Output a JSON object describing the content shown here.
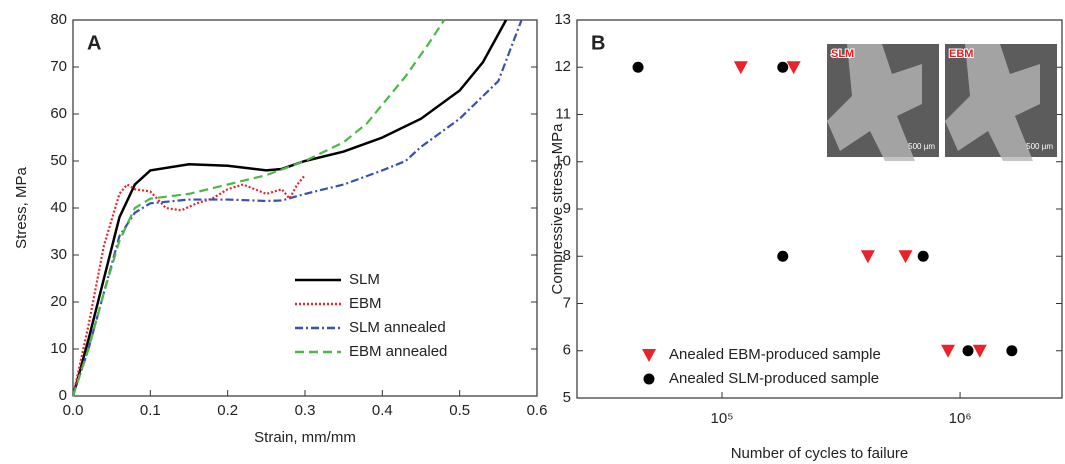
{
  "chart_data": [
    {
      "type": "line",
      "panel": "A",
      "xlabel": "Strain, mm/mm",
      "ylabel": "Stress, MPa",
      "xlim": [
        0,
        0.6
      ],
      "ylim": [
        0,
        80
      ],
      "xticks": [
        {
          "value": 0,
          "label": "0.0"
        },
        0.1,
        0.2,
        0.3,
        0.4,
        0.5,
        0.6
      ],
      "yticks": [
        0,
        10,
        20,
        30,
        40,
        50,
        60,
        70,
        80
      ],
      "legend": "lower right",
      "series": [
        {
          "name": "SLM",
          "color": "#000000",
          "style": "solid",
          "x": [
            0,
            0.02,
            0.04,
            0.06,
            0.08,
            0.1,
            0.15,
            0.2,
            0.25,
            0.27,
            0.3,
            0.35,
            0.4,
            0.45,
            0.5,
            0.53,
            0.55,
            0.56
          ],
          "values": [
            0,
            12,
            25,
            38,
            45,
            48,
            49.3,
            49,
            48,
            48.3,
            50,
            52,
            55,
            59,
            65,
            71,
            77,
            80
          ]
        },
        {
          "name": "EBM",
          "color": "#e8242a",
          "style": "dotted",
          "x": [
            0,
            0.02,
            0.04,
            0.06,
            0.07,
            0.08,
            0.1,
            0.12,
            0.14,
            0.16,
            0.18,
            0.2,
            0.22,
            0.25,
            0.27,
            0.28,
            0.29,
            0.3
          ],
          "values": [
            0,
            15,
            32,
            43,
            45,
            44,
            43.5,
            40,
            39.5,
            41,
            42,
            44,
            45,
            43,
            44,
            42,
            45,
            47
          ]
        },
        {
          "name": "SLM annealed",
          "color": "#3a4fb0",
          "style": "dashdot",
          "x": [
            0,
            0.02,
            0.04,
            0.06,
            0.08,
            0.1,
            0.15,
            0.2,
            0.25,
            0.27,
            0.3,
            0.35,
            0.4,
            0.43,
            0.45,
            0.5,
            0.55,
            0.58
          ],
          "values": [
            0,
            10,
            22,
            34,
            39,
            41,
            41.8,
            41.8,
            41.5,
            41.6,
            43,
            45,
            48,
            50,
            53,
            59,
            67,
            80
          ]
        },
        {
          "name": "EBM annealed",
          "color": "#4cb848",
          "style": "dashed",
          "x": [
            0,
            0.02,
            0.04,
            0.06,
            0.08,
            0.1,
            0.15,
            0.2,
            0.25,
            0.3,
            0.35,
            0.38,
            0.4,
            0.43,
            0.46,
            0.48
          ],
          "values": [
            0,
            10,
            22,
            33,
            40,
            42,
            43,
            45,
            47,
            50,
            54,
            58,
            62,
            68,
            75,
            80
          ]
        }
      ]
    },
    {
      "type": "scatter",
      "panel": "B",
      "xlabel": "Number of cycles to failure",
      "ylabel": "Compressive stress, MPa",
      "xscale": "log",
      "xlim": [
        24600,
        2680000
      ],
      "ylim": [
        5,
        13
      ],
      "xticks": [
        {
          "value": 100000,
          "label": "10⁵"
        },
        {
          "value": 1000000,
          "label": "10⁶"
        }
      ],
      "yticks": [
        5,
        6,
        7,
        8,
        9,
        10,
        11,
        12,
        13
      ],
      "legend": "lower left",
      "insets": [
        {
          "label": "SLM",
          "scale": "500 µm"
        },
        {
          "label": "EBM",
          "scale": "500 µm"
        }
      ],
      "series": [
        {
          "name": "Anealed EBM-produced sample",
          "color": "#e8242a",
          "marker": "v",
          "x": [
            120000,
            200000,
            410000,
            590000,
            890000,
            1210000
          ],
          "values": [
            12,
            12,
            8,
            8,
            6,
            6
          ]
        },
        {
          "name": "Anealed SLM-produced sample",
          "color": "#000000",
          "marker": "o",
          "x": [
            44400,
            180000,
            180000,
            700000,
            1080000,
            1650000
          ],
          "values": [
            12,
            12,
            8,
            8,
            6,
            6
          ]
        }
      ]
    }
  ]
}
